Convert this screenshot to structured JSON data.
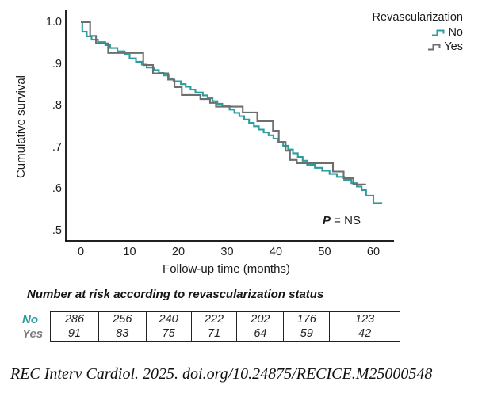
{
  "colors": {
    "no": "#2A9D9D",
    "yes": "#6E6E6E",
    "yes_label": "#7D7D7D",
    "axis": "#000000",
    "text": "#1A1A1A"
  },
  "legend": {
    "title": "Revascularization",
    "items": [
      {
        "label": "No",
        "color_key": "no"
      },
      {
        "label": "Yes",
        "color_key": "yes"
      }
    ]
  },
  "annotation": {
    "p_italic": "P",
    "p_rest": " = NS"
  },
  "chart_data": {
    "type": "line",
    "subtype": "kaplan-meier-step-curves",
    "title": "",
    "xlabel": "Follow-up time (months)",
    "ylabel": "Cumulative survival",
    "xlim": [
      0,
      64
    ],
    "ylim": [
      0.5,
      1.0
    ],
    "grid": false,
    "legend_position": "top-right",
    "p_value_text": "P = NS",
    "x_ticks": [
      0,
      10,
      20,
      30,
      40,
      50,
      60
    ],
    "y_ticks": [
      {
        "label": "1.0",
        "value": 1.0
      },
      {
        "label": ".9",
        "value": 0.9
      },
      {
        "label": ".8",
        "value": 0.8
      },
      {
        "label": ".7",
        "value": 0.7
      },
      {
        "label": ".6",
        "value": 0.6
      },
      {
        "label": ".5",
        "value": 0.5
      }
    ],
    "series": [
      {
        "name": "No",
        "color_key": "no",
        "t_end": 61.8,
        "points": [
          [
            0,
            1.0
          ],
          [
            0.3,
            0.977
          ],
          [
            1.2,
            0.966
          ],
          [
            2.2,
            0.958
          ],
          [
            3.5,
            0.952
          ],
          [
            5,
            0.945
          ],
          [
            6,
            0.938
          ],
          [
            7.5,
            0.93
          ],
          [
            9,
            0.922
          ],
          [
            10,
            0.913
          ],
          [
            11.3,
            0.905
          ],
          [
            12.5,
            0.898
          ],
          [
            13.5,
            0.891
          ],
          [
            15,
            0.885
          ],
          [
            16,
            0.878
          ],
          [
            17,
            0.872
          ],
          [
            18,
            0.865
          ],
          [
            19,
            0.858
          ],
          [
            20.5,
            0.851
          ],
          [
            21.5,
            0.845
          ],
          [
            22.5,
            0.838
          ],
          [
            23.5,
            0.831
          ],
          [
            25,
            0.824
          ],
          [
            26,
            0.817
          ],
          [
            27,
            0.81
          ],
          [
            28,
            0.804
          ],
          [
            29,
            0.798
          ],
          [
            30.5,
            0.79
          ],
          [
            31.5,
            0.782
          ],
          [
            32.5,
            0.774
          ],
          [
            33.5,
            0.766
          ],
          [
            34.5,
            0.758
          ],
          [
            35.5,
            0.75
          ],
          [
            36.5,
            0.742
          ],
          [
            37.5,
            0.735
          ],
          [
            38.5,
            0.728
          ],
          [
            39.5,
            0.72
          ],
          [
            40.5,
            0.712
          ],
          [
            41.5,
            0.703
          ],
          [
            42.5,
            0.694
          ],
          [
            43.5,
            0.685
          ],
          [
            44.5,
            0.676
          ],
          [
            45.5,
            0.667
          ],
          [
            46.4,
            0.657
          ],
          [
            48,
            0.65
          ],
          [
            49.5,
            0.643
          ],
          [
            51,
            0.635
          ],
          [
            52.5,
            0.628
          ],
          [
            54,
            0.621
          ],
          [
            55.5,
            0.613
          ],
          [
            56.6,
            0.605
          ],
          [
            57.6,
            0.596
          ],
          [
            58.5,
            0.583
          ],
          [
            60,
            0.565
          ]
        ]
      },
      {
        "name": "Yes",
        "color_key": "yes",
        "t_end": 58.5,
        "points": [
          [
            0,
            1.0
          ],
          [
            1.9,
            0.967
          ],
          [
            3.1,
            0.949
          ],
          [
            5.6,
            0.926
          ],
          [
            12.8,
            0.897
          ],
          [
            14.8,
            0.877
          ],
          [
            17.9,
            0.862
          ],
          [
            19.2,
            0.844
          ],
          [
            20.7,
            0.825
          ],
          [
            24.5,
            0.815
          ],
          [
            26.5,
            0.806
          ],
          [
            27.7,
            0.797
          ],
          [
            33.2,
            0.783
          ],
          [
            36.2,
            0.762
          ],
          [
            39.4,
            0.739
          ],
          [
            40.6,
            0.712
          ],
          [
            42,
            0.691
          ],
          [
            42.9,
            0.669
          ],
          [
            44.3,
            0.661
          ],
          [
            51.7,
            0.641
          ],
          [
            53.9,
            0.625
          ],
          [
            55.9,
            0.61
          ]
        ]
      }
    ]
  },
  "risk_table": {
    "title": "Number at risk according to revascularization status",
    "time_points": [
      0,
      10,
      20,
      30,
      40,
      50,
      60
    ],
    "rows": [
      {
        "label": "No",
        "values": [
          286,
          256,
          240,
          222,
          202,
          176,
          123
        ]
      },
      {
        "label": "Yes",
        "values": [
          91,
          83,
          75,
          71,
          64,
          59,
          42
        ]
      }
    ]
  },
  "citation": "REC Interv Cardiol. 2025. doi.org/10.24875/RECICE.M25000548"
}
